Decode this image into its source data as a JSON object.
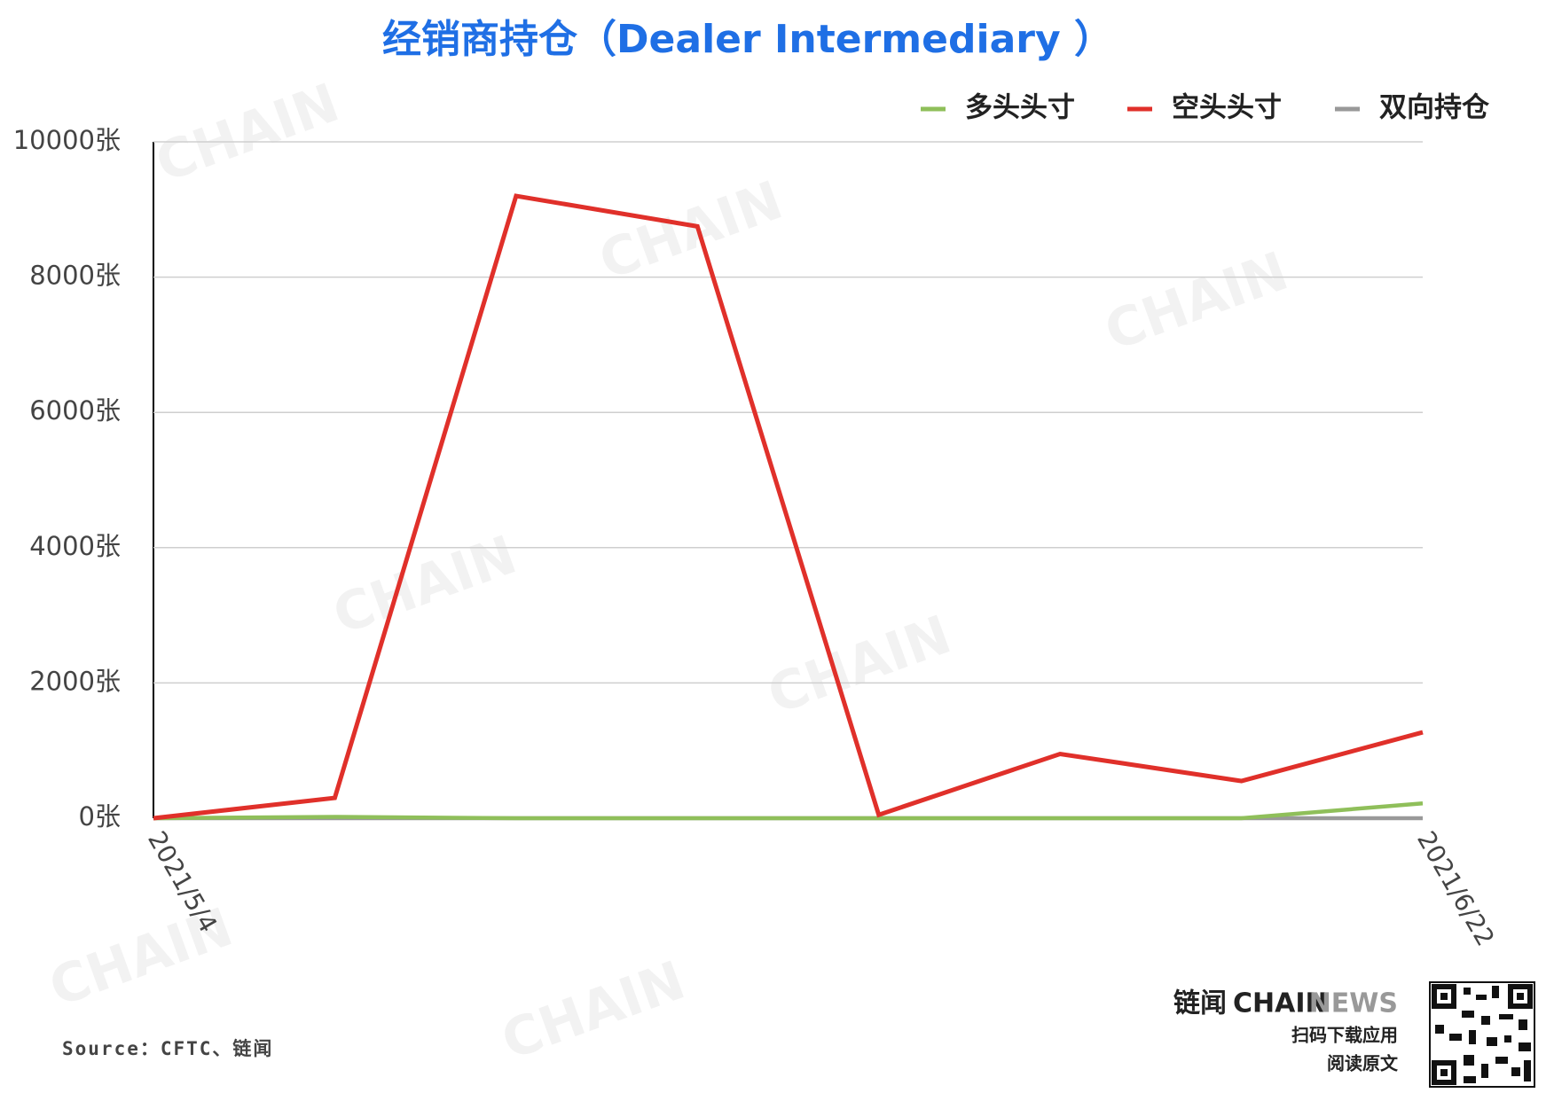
{
  "chart_data": {
    "type": "line",
    "title": "经销商持仓（Dealer Intermediary ）",
    "categories": [
      "2021/5/4",
      null,
      null,
      null,
      null,
      null,
      null,
      "2021/6/22"
    ],
    "series": [
      {
        "name": "多头头寸",
        "color": "#8fbf5a",
        "values": [
          0,
          20,
          0,
          0,
          0,
          0,
          0,
          220
        ]
      },
      {
        "name": "空头头寸",
        "color": "#e0302a",
        "values": [
          0,
          300,
          9200,
          8750,
          50,
          950,
          550,
          1270
        ]
      },
      {
        "name": "双向持仓",
        "color": "#999999",
        "values": [
          0,
          0,
          0,
          0,
          0,
          0,
          0,
          0
        ]
      }
    ],
    "ylim": [
      0,
      10000
    ],
    "yticks": [
      {
        "value": 0,
        "label": "0张"
      },
      {
        "value": 2000,
        "label": "2000张"
      },
      {
        "value": 4000,
        "label": "4000张"
      },
      {
        "value": 6000,
        "label": "6000张"
      },
      {
        "value": 8000,
        "label": "8000张"
      },
      {
        "value": 10000,
        "label": "10000张"
      }
    ],
    "grid": true,
    "legend": "top-right",
    "source": "Source：CFTC、链闻"
  },
  "branding": {
    "logo_cn": "链闻",
    "logo_a": "CHAIN",
    "logo_b": "NEWS",
    "line1": "扫码下载应用",
    "line2": "阅读原文"
  }
}
